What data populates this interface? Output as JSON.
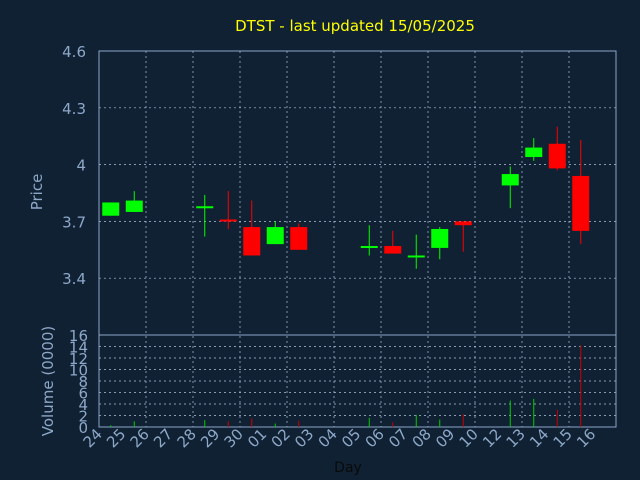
{
  "chart_data": {
    "type": "candlestick",
    "title": "DTST - last updated 15/05/2025",
    "ylabel": "Price",
    "volume_ylabel": "Volume (0000)",
    "xlabel": "Day",
    "ylim": [
      3.1,
      4.6
    ],
    "yticks": [
      "4.6",
      "4.3",
      "4",
      "3.7",
      "3.4"
    ],
    "ytick_values": [
      4.6,
      4.3,
      4.0,
      3.7,
      3.4
    ],
    "volume_ylim": [
      0,
      16
    ],
    "volume_ticks": [
      "16",
      "14",
      "12",
      "10",
      "8",
      "6",
      "4",
      "2",
      "0"
    ],
    "volume_tick_values": [
      16,
      14,
      12,
      10,
      8,
      6,
      4,
      2,
      0
    ],
    "x_labels": [
      "24",
      "25",
      "26",
      "27",
      "28",
      "29",
      "30",
      "01",
      "02",
      "03",
      "04",
      "05",
      "06",
      "07",
      "08",
      "09",
      "10",
      "12",
      "13",
      "14",
      "15",
      "16"
    ],
    "grid": true,
    "colors": {
      "background": "#0f2133",
      "axis": "#8ea8c8",
      "grid": "#b0c4de",
      "title": "#ffff00",
      "up": "#00ff00",
      "down": "#ff0000",
      "volume_up": "#00cc00",
      "volume_down": "#cc0000"
    },
    "candles": [
      {
        "day": "24",
        "x": 0,
        "open": 3.73,
        "close": 3.8,
        "high": 3.8,
        "low": 3.73,
        "volume": 0.3
      },
      {
        "day": "25",
        "x": 1,
        "open": 3.75,
        "close": 3.81,
        "high": 3.86,
        "low": 3.75,
        "volume": 1.0
      },
      {
        "day": "28",
        "x": 4,
        "open": 3.78,
        "close": 3.78,
        "high": 3.84,
        "low": 3.62,
        "volume": 1.2
      },
      {
        "day": "29",
        "x": 5,
        "open": 3.71,
        "close": 3.7,
        "high": 3.86,
        "low": 3.66,
        "volume": 1.0
      },
      {
        "day": "30",
        "x": 6,
        "open": 3.67,
        "close": 3.52,
        "high": 3.81,
        "low": 3.52,
        "volume": 1.5
      },
      {
        "day": "01",
        "x": 7,
        "open": 3.58,
        "close": 3.67,
        "high": 3.7,
        "low": 3.58,
        "volume": 0.6
      },
      {
        "day": "02",
        "x": 8,
        "open": 3.67,
        "close": 3.55,
        "high": 3.69,
        "low": 3.55,
        "volume": 1.1
      },
      {
        "day": "05",
        "x": 11,
        "open": 3.56,
        "close": 3.57,
        "high": 3.68,
        "low": 3.52,
        "volume": 1.6
      },
      {
        "day": "06",
        "x": 12,
        "open": 3.57,
        "close": 3.53,
        "high": 3.65,
        "low": 3.53,
        "volume": 0.8
      },
      {
        "day": "07",
        "x": 13,
        "open": 3.52,
        "close": 3.52,
        "high": 3.63,
        "low": 3.45,
        "volume": 2.1
      },
      {
        "day": "08",
        "x": 14,
        "open": 3.56,
        "close": 3.66,
        "high": 3.67,
        "low": 3.5,
        "volume": 1.3
      },
      {
        "day": "09",
        "x": 15,
        "open": 3.7,
        "close": 3.68,
        "high": 3.7,
        "low": 3.54,
        "volume": 2.2
      },
      {
        "day": "12",
        "x": 17,
        "open": 3.89,
        "close": 3.95,
        "high": 3.99,
        "low": 3.77,
        "volume": 4.6
      },
      {
        "day": "13",
        "x": 18,
        "open": 4.04,
        "close": 4.09,
        "high": 4.14,
        "low": 4.02,
        "volume": 4.9
      },
      {
        "day": "14",
        "x": 19,
        "open": 4.11,
        "close": 3.98,
        "high": 4.2,
        "low": 3.97,
        "volume": 3.0
      },
      {
        "day": "15",
        "x": 20,
        "open": 3.94,
        "close": 3.65,
        "high": 4.13,
        "low": 3.58,
        "volume": 14.2
      }
    ]
  }
}
